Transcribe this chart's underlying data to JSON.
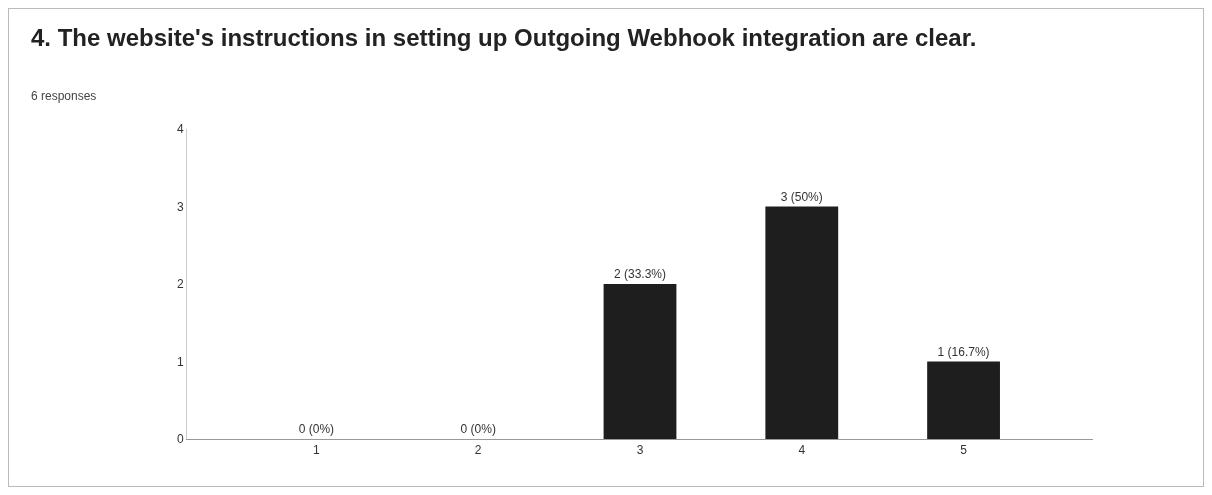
{
  "chart_data": {
    "type": "bar",
    "title": "4. The website's instructions in setting up Outgoing Webhook integration are clear.",
    "subtitle": "6 responses",
    "categories": [
      "1",
      "2",
      "3",
      "4",
      "5"
    ],
    "values": [
      0,
      0,
      2,
      3,
      1
    ],
    "value_labels": [
      "0 (0%)",
      "0 (0%)",
      "2 (33.3%)",
      "3 (50%)",
      "1 (16.7%)"
    ],
    "color": "#1e1e1e",
    "ylim": [
      0,
      4
    ],
    "yticks": [
      0,
      1,
      2,
      3,
      4
    ],
    "grid": false
  }
}
